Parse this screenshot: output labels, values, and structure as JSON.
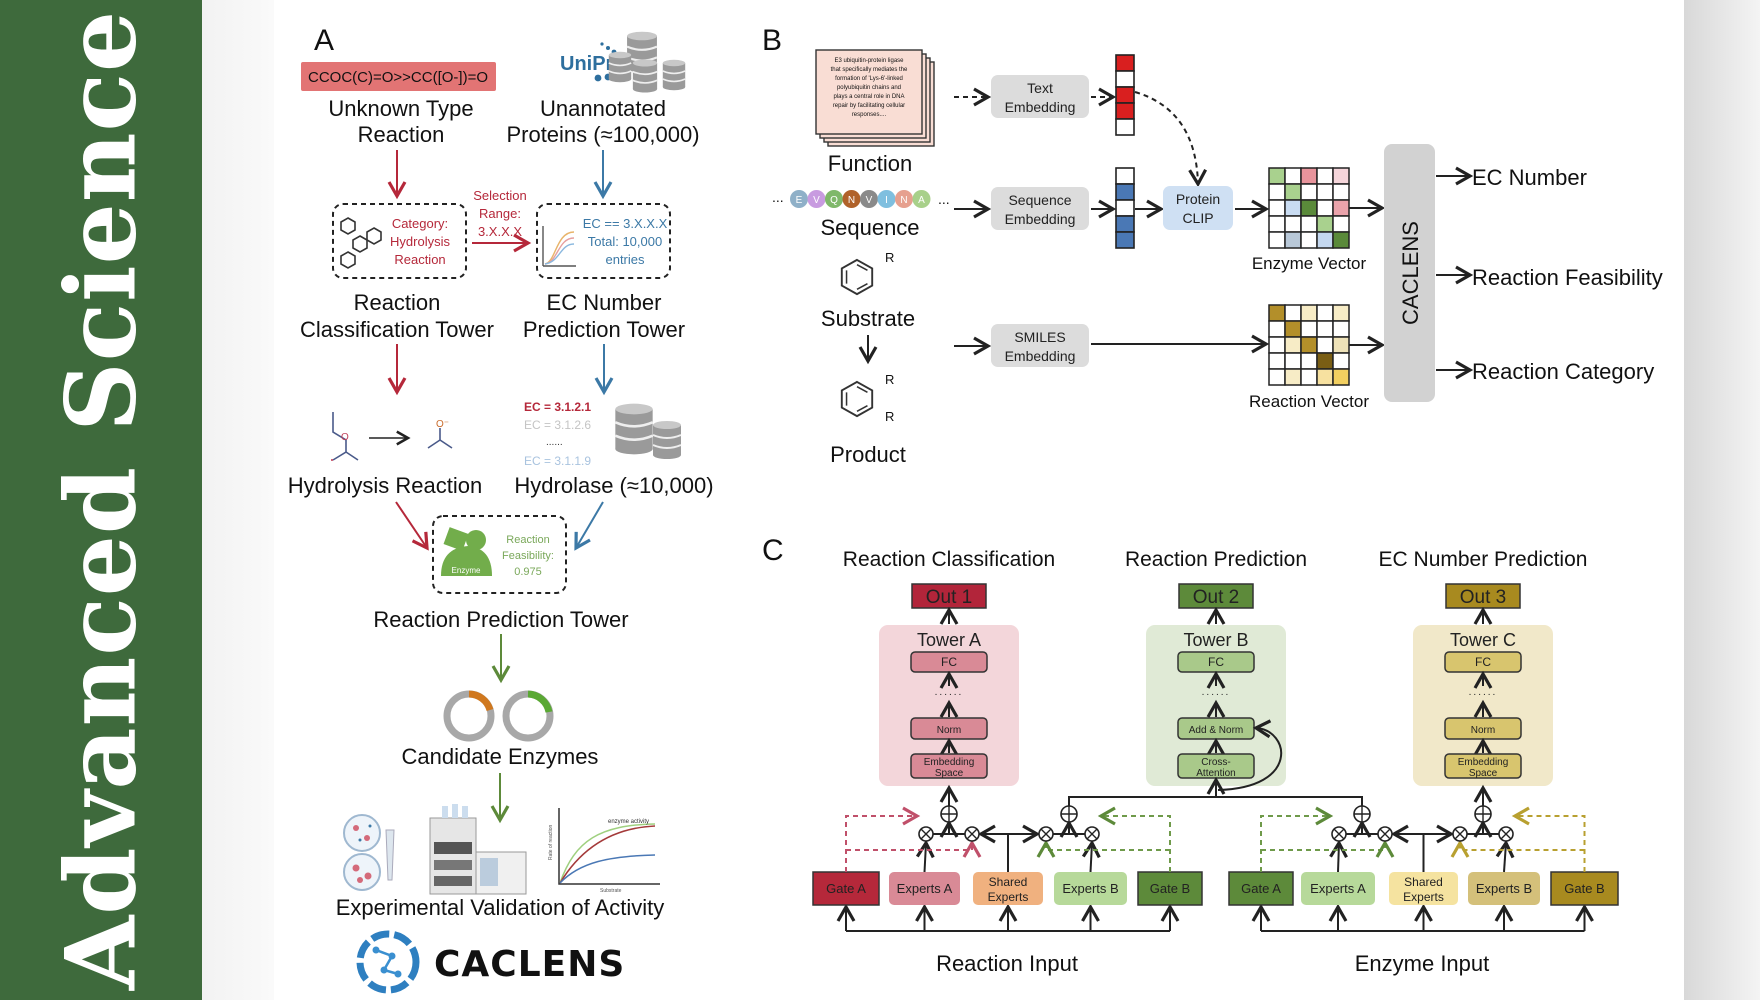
{
  "banner": {
    "journal": "Advanced Science",
    "color": "#3e6a3c"
  },
  "panel_a": {
    "label": "A",
    "smiles": "CCOC(C)=O>>CC([O-])=O",
    "uniprot_logo": "UniProt",
    "unknown_reaction": [
      "Unknown Type",
      "Reaction"
    ],
    "unannotated": [
      "Unannotated",
      "Proteins (≈100,000)"
    ],
    "category": [
      "Category:",
      "Hydrolysis",
      "Reaction"
    ],
    "selection": [
      "Selection",
      "Range:",
      "3.X.X.X"
    ],
    "ec_filter": [
      "EC == 3.X.X.X",
      "Total: 10,000",
      "entries"
    ],
    "classification_tower": [
      "Reaction",
      "Classification Tower"
    ],
    "ec_tower": [
      "EC Number",
      "Prediction Tower"
    ],
    "atom_o": "O",
    "atom_o_minus": "O⁻",
    "hydrolysis": "Hydrolysis Reaction",
    "ec_list": [
      "EC = 3.1.2.1",
      "EC = 3.1.2.6",
      "......",
      "EC = 3.1.1.9"
    ],
    "hydrolase": "Hydrolase (≈10,000)",
    "enzyme_label": "Enzyme",
    "feasibility": [
      "Reaction",
      "Feasibility:",
      "0.975"
    ],
    "prediction_tower": "Reaction Prediction Tower",
    "candidates": "Candidate Enzymes",
    "activity_chart": {
      "title": "enzyme activity",
      "ylabel": "Rate of reaction",
      "xlabel": "Substrate"
    },
    "validation": "Experimental Validation of Activity",
    "logo": "CACLENS"
  },
  "panel_b": {
    "label": "B",
    "function_text": [
      "E3 ubiquitin-protein ligase",
      "that specifically mediates the",
      "formation of 'Lys-6'-linked",
      "polyubiquitin chains and",
      "plays a central role in DNA",
      "repair by facilitating cellular",
      "responses...."
    ],
    "function": "Function",
    "ellipsis": "...",
    "residues": [
      "E",
      "V",
      "Q",
      "N",
      "V",
      "I",
      "N",
      "A"
    ],
    "residue_colors": [
      "#8fb0c8",
      "#c89be0",
      "#7fb86a",
      "#b0622a",
      "#8a8a8a",
      "#7fbfdf",
      "#e6a08f",
      "#a8d08a"
    ],
    "sequence": "Sequence",
    "substrate": "Substrate",
    "product": "Product",
    "r_group": "R",
    "text_embedding": [
      "Text",
      "Embedding"
    ],
    "sequence_embedding": [
      "Sequence",
      "Embedding"
    ],
    "smiles_embedding": [
      "SMILES",
      "Embedding"
    ],
    "protein_clip": [
      "Protein",
      "CLIP"
    ],
    "text_vector_colors": [
      "#d91f1f",
      "#ffffff",
      "#d91f1f",
      "#d91f1f",
      "#ffffff"
    ],
    "seq_vector_colors": [
      "#ffffff",
      "#4a78b5",
      "#ffffff",
      "#4a78b5",
      "#4a78b5"
    ],
    "enzyme_vector": "Enzyme Vector",
    "enzyme_grid": [
      [
        "#a9d18e",
        "#ffffff",
        "#e8949c",
        "#ffffff",
        "#f5d5da"
      ],
      [
        "#ffffff",
        "#a9d18e",
        "#ffffff",
        "#ffffff",
        "#ffffff"
      ],
      [
        "#ffffff",
        "#c9dcf2",
        "#5a8a3a",
        "#ffffff",
        "#eaa3ab"
      ],
      [
        "#ffffff",
        "#ffffff",
        "#ffffff",
        "#a9d18e",
        "#ffffff"
      ],
      [
        "#ffffff",
        "#b8c8d8",
        "#ffffff",
        "#c4d8f0",
        "#5a8a3a"
      ]
    ],
    "reaction_vector": "Reaction Vector",
    "reaction_grid": [
      [
        "#b38f2a",
        "#ffffff",
        "#f7ecc6",
        "#ffffff",
        "#f7ecc6"
      ],
      [
        "#ffffff",
        "#b38f2a",
        "#ffffff",
        "#ffffff",
        "#ffffff"
      ],
      [
        "#ffffff",
        "#f7ecc6",
        "#b38f2a",
        "#ffffff",
        "#eee2b8"
      ],
      [
        "#ffffff",
        "#ffffff",
        "#ffffff",
        "#7a5e14",
        "#ffffff"
      ],
      [
        "#ffffff",
        "#f7ecc6",
        "#ffffff",
        "#f7e1a0",
        "#f2cf60"
      ]
    ],
    "model": "CACLENS",
    "outputs": [
      "EC Number",
      "Reaction Feasibility",
      "Reaction Category"
    ]
  },
  "panel_c": {
    "label": "C",
    "tasks": [
      {
        "title": "Reaction Classification",
        "out": "Out 1",
        "tower": "Tower A",
        "layers": [
          "FC",
          "......",
          "Norm",
          "Embedding",
          "Space"
        ]
      },
      {
        "title": "Reaction Prediction",
        "out": "Out 2",
        "tower": "Tower B",
        "layers": [
          "FC",
          "......",
          "Add & Norm",
          "Cross-",
          "Attention"
        ]
      },
      {
        "title": "EC Number Prediction",
        "out": "Out 3",
        "tower": "Tower C",
        "layers": [
          "FC",
          "......",
          "Norm",
          "Embedding",
          "Space"
        ]
      }
    ],
    "reaction_modules": [
      "Gate A",
      "Experts A",
      "Shared",
      "Experts",
      "Experts B",
      "Gate B"
    ],
    "enzyme_modules": [
      "Gate A",
      "Experts A",
      "Shared",
      "Experts",
      "Experts B",
      "Gate B"
    ],
    "reaction_input": "Reaction Input",
    "enzyme_input": "Enzyme Input"
  }
}
